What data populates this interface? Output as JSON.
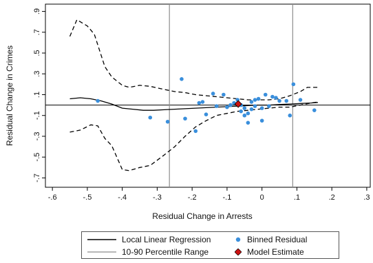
{
  "chart_data": {
    "type": "scatter",
    "xlabel": "Residual Change in Arrests",
    "ylabel": "Residual Change in Crimes",
    "xlim": [
      -0.62,
      0.31
    ],
    "ylim": [
      -0.79,
      0.97
    ],
    "x_ticks": [
      -0.6,
      -0.5,
      -0.4,
      -0.3,
      -0.2,
      -0.1,
      0,
      0.1,
      0.2,
      0.3
    ],
    "x_tick_labels": [
      "-.6",
      "-.5",
      "-.4",
      "-.3",
      "-.2",
      "-.1",
      "0",
      ".1",
      ".2",
      ".3"
    ],
    "y_ticks": [
      -0.7,
      -0.5,
      -0.3,
      -0.1,
      0.1,
      0.3,
      0.5,
      0.7,
      0.9
    ],
    "y_tick_labels": [
      "-.7",
      "-.5",
      "-.3",
      "-.1",
      ".1",
      ".3",
      ".5",
      ".7",
      ".9"
    ],
    "grid": false,
    "hline_y": 0,
    "vlines_x": [
      -0.265,
      0.088
    ],
    "series": [
      {
        "name": "Local Linear Regression",
        "style": "solid",
        "color": "#000000",
        "x": [
          -0.55,
          -0.52,
          -0.49,
          -0.46,
          -0.43,
          -0.4,
          -0.37,
          -0.34,
          -0.31,
          -0.28,
          -0.25,
          -0.22,
          -0.19,
          -0.16,
          -0.13,
          -0.1,
          -0.07,
          -0.04,
          -0.01,
          0.02,
          0.05,
          0.08,
          0.11,
          0.14,
          0.16
        ],
        "y": [
          0.06,
          0.07,
          0.06,
          0.04,
          0.01,
          -0.03,
          -0.04,
          -0.05,
          -0.05,
          -0.045,
          -0.04,
          -0.035,
          -0.03,
          -0.025,
          -0.02,
          -0.015,
          -0.01,
          -0.005,
          0.0,
          0.0,
          0.005,
          0.01,
          0.015,
          0.02,
          0.025
        ]
      },
      {
        "name": "Upper bound",
        "style": "dashed",
        "color": "#000000",
        "x": [
          -0.55,
          -0.53,
          -0.5,
          -0.48,
          -0.45,
          -0.43,
          -0.4,
          -0.38,
          -0.35,
          -0.32,
          -0.28,
          -0.25,
          -0.22,
          -0.19,
          -0.16,
          -0.13,
          -0.1,
          -0.07,
          -0.04,
          -0.01,
          0.02,
          0.05,
          0.08,
          0.11,
          0.13,
          0.16
        ],
        "y": [
          0.66,
          0.82,
          0.76,
          0.68,
          0.37,
          0.27,
          0.19,
          0.17,
          0.19,
          0.18,
          0.15,
          0.13,
          0.12,
          0.1,
          0.09,
          0.08,
          0.07,
          0.06,
          0.05,
          0.05,
          0.05,
          0.06,
          0.09,
          0.13,
          0.17,
          0.17
        ]
      },
      {
        "name": "Lower bound",
        "style": "dashed",
        "color": "#000000",
        "x": [
          -0.55,
          -0.52,
          -0.49,
          -0.47,
          -0.45,
          -0.43,
          -0.4,
          -0.38,
          -0.35,
          -0.32,
          -0.28,
          -0.25,
          -0.22,
          -0.19,
          -0.16,
          -0.13,
          -0.1,
          -0.07,
          -0.04,
          -0.01,
          0.02,
          0.05,
          0.08,
          0.11,
          0.14,
          0.16
        ],
        "y": [
          -0.26,
          -0.24,
          -0.19,
          -0.2,
          -0.32,
          -0.39,
          -0.62,
          -0.63,
          -0.6,
          -0.58,
          -0.48,
          -0.4,
          -0.3,
          -0.21,
          -0.15,
          -0.1,
          -0.08,
          -0.06,
          -0.05,
          -0.04,
          -0.03,
          -0.02,
          -0.02,
          0.0,
          0.02,
          0.03
        ]
      },
      {
        "name": "Binned Residual",
        "style": "points",
        "color": "#3a8fdc",
        "x": [
          -0.47,
          -0.32,
          -0.27,
          -0.23,
          -0.22,
          -0.19,
          -0.18,
          -0.17,
          -0.16,
          -0.14,
          -0.13,
          -0.11,
          -0.1,
          -0.09,
          -0.08,
          -0.07,
          -0.06,
          -0.06,
          -0.05,
          -0.05,
          -0.04,
          -0.04,
          -0.03,
          -0.03,
          -0.02,
          -0.02,
          -0.01,
          0.0,
          0.0,
          0.01,
          0.02,
          0.03,
          0.04,
          0.05,
          0.07,
          0.08,
          0.09,
          0.11,
          0.15
        ],
        "y": [
          0.04,
          -0.12,
          -0.16,
          0.25,
          -0.13,
          -0.25,
          0.02,
          0.03,
          -0.09,
          0.11,
          -0.01,
          0.1,
          -0.02,
          0.0,
          0.02,
          0.05,
          0.0,
          -0.06,
          -0.1,
          -0.03,
          -0.08,
          -0.17,
          -0.04,
          0.03,
          -0.01,
          0.05,
          0.06,
          -0.03,
          -0.15,
          0.1,
          -0.01,
          0.08,
          0.07,
          0.04,
          0.04,
          -0.1,
          0.2,
          0.05,
          -0.05
        ]
      },
      {
        "name": "Model Estimate",
        "style": "diamond",
        "color": "#cc1111",
        "x": [
          -0.068
        ],
        "y": [
          0.01
        ]
      },
      {
        "name": "10-90 Percentile Range",
        "style": "vline",
        "color": "#8c8c8c"
      }
    ],
    "legend": {
      "placement": "bottom",
      "items": [
        "Local Linear Regression",
        "Binned Residual",
        "10-90 Percentile Range",
        "Model Estimate"
      ]
    }
  }
}
